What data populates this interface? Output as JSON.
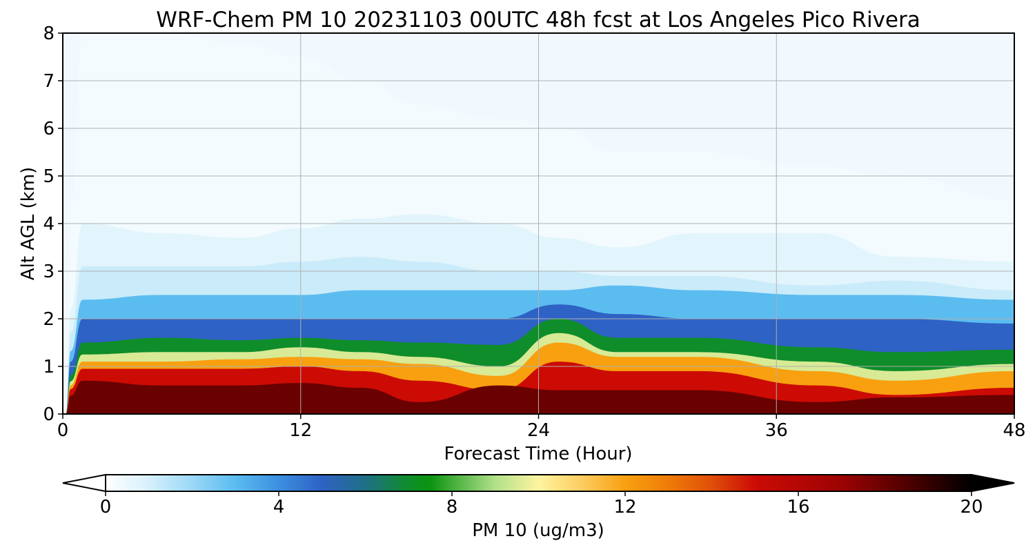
{
  "chart_data": {
    "type": "heatmap",
    "title": "WRF-Chem PM 10  20231103 00UTC 48h fcst at Los Angeles Pico Rivera",
    "xlabel": "Forecast Time (Hour)",
    "ylabel": "Alt AGL (km)",
    "xlim": [
      0,
      48
    ],
    "ylim": [
      0,
      8
    ],
    "x_ticks": [
      "0",
      "12",
      "24",
      "36",
      "48"
    ],
    "y_ticks": [
      "0",
      "1",
      "2",
      "3",
      "4",
      "5",
      "6",
      "7",
      "8"
    ],
    "grid": true,
    "colorbar": {
      "label": "PM 10  (ug/m3)",
      "min": 0,
      "max": 20,
      "ticks": [
        "0",
        "4",
        "8",
        "12",
        "16",
        "20"
      ],
      "extend": "both",
      "color_stops": [
        {
          "value": 0,
          "color": "#ffffff"
        },
        {
          "value": 1,
          "color": "#d6f0fb"
        },
        {
          "value": 2,
          "color": "#9bd8f7"
        },
        {
          "value": 3,
          "color": "#5bbcf0"
        },
        {
          "value": 4,
          "color": "#3c8fe0"
        },
        {
          "value": 5,
          "color": "#2e62c4"
        },
        {
          "value": 6,
          "color": "#1f6f86"
        },
        {
          "value": 7,
          "color": "#0f8d2a"
        },
        {
          "value": 7.5,
          "color": "#0a9410"
        },
        {
          "value": 9,
          "color": "#b2e08a"
        },
        {
          "value": 10,
          "color": "#fdf4a0"
        },
        {
          "value": 11,
          "color": "#fdcd60"
        },
        {
          "value": 12,
          "color": "#f8a010"
        },
        {
          "value": 13,
          "color": "#ef7c08"
        },
        {
          "value": 14,
          "color": "#e04e08"
        },
        {
          "value": 15,
          "color": "#cc0b05"
        },
        {
          "value": 17,
          "color": "#9c0303"
        },
        {
          "value": 18.5,
          "color": "#500000"
        },
        {
          "value": 20,
          "color": "#000000"
        }
      ]
    },
    "contour_levels": [
      {
        "value": 0.3,
        "heights_km": [
          8,
          8,
          7.8,
          7.5,
          7.0,
          6.5,
          6.2,
          6.0,
          5.5,
          5.5,
          5.2,
          5.0,
          4.5
        ]
      },
      {
        "value": 0.7,
        "heights_km": [
          4.0,
          3.8,
          3.7,
          3.9,
          4.1,
          4.2,
          4.0,
          3.7,
          3.5,
          3.8,
          3.8,
          3.3,
          3.2
        ]
      },
      {
        "value": 1.2,
        "heights_km": [
          3.1,
          3.1,
          3.1,
          3.2,
          3.3,
          3.2,
          3.0,
          3.0,
          2.9,
          2.9,
          2.7,
          2.8,
          2.6
        ]
      },
      {
        "value": 3,
        "heights_km": [
          2.4,
          2.5,
          2.5,
          2.5,
          2.6,
          2.6,
          2.6,
          2.6,
          2.7,
          2.6,
          2.5,
          2.5,
          2.4
        ]
      },
      {
        "value": 5,
        "heights_km": [
          2.0,
          2.0,
          2.0,
          2.0,
          2.0,
          2.0,
          2.0,
          2.3,
          2.1,
          2.0,
          2.0,
          2.0,
          1.9
        ]
      },
      {
        "value": 7,
        "heights_km": [
          1.5,
          1.6,
          1.55,
          1.6,
          1.55,
          1.5,
          1.45,
          2.0,
          1.6,
          1.6,
          1.4,
          1.3,
          1.35
        ]
      },
      {
        "value": 9.5,
        "heights_km": [
          1.25,
          1.3,
          1.3,
          1.4,
          1.3,
          1.2,
          1.0,
          1.7,
          1.3,
          1.3,
          1.1,
          0.9,
          1.05
        ]
      },
      {
        "value": 12,
        "heights_km": [
          1.1,
          1.1,
          1.15,
          1.2,
          1.15,
          1.05,
          0.8,
          1.5,
          1.2,
          1.2,
          0.9,
          0.7,
          0.9
        ]
      },
      {
        "value": 15,
        "heights_km": [
          0.95,
          0.95,
          0.95,
          1.0,
          0.9,
          0.7,
          0.5,
          1.1,
          0.9,
          0.9,
          0.6,
          0.4,
          0.55
        ]
      },
      {
        "value": 18,
        "heights_km": [
          0.7,
          0.6,
          0.6,
          0.65,
          0.55,
          0.25,
          0.6,
          0.5,
          0.5,
          0.5,
          0.25,
          0.35,
          0.4
        ]
      }
    ],
    "contour_x_hours": [
      1,
      5,
      9,
      12,
      15,
      18,
      22,
      25,
      28,
      32,
      38,
      42,
      48
    ]
  }
}
